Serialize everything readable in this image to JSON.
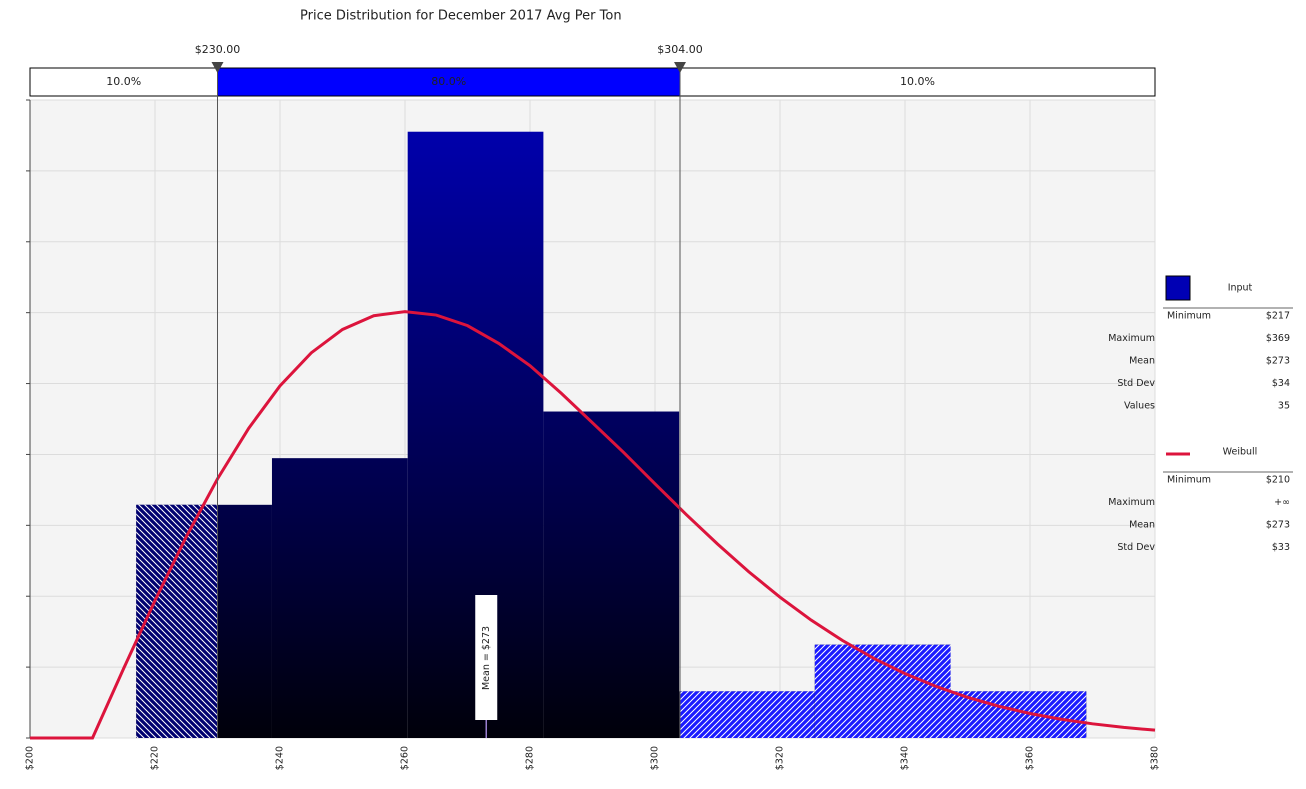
{
  "chart_data": {
    "type": "histogram",
    "title": "Price Distribution for December 2017 Avg Per Ton",
    "xlim": [
      200,
      380
    ],
    "ylim": [
      0,
      0.018
    ],
    "xticks": [
      {
        "value": 200,
        "label": "$200"
      },
      {
        "value": 220,
        "label": "$220"
      },
      {
        "value": 240,
        "label": "$240"
      },
      {
        "value": 260,
        "label": "$260"
      },
      {
        "value": 280,
        "label": "$280"
      },
      {
        "value": 300,
        "label": "$300"
      },
      {
        "value": 320,
        "label": "$320"
      },
      {
        "value": 340,
        "label": "$340"
      },
      {
        "value": 360,
        "label": "$360"
      },
      {
        "value": 380,
        "label": "$380"
      }
    ],
    "yticks": [
      0,
      0.002,
      0.004,
      0.006,
      0.008,
      0.01,
      0.012,
      0.014,
      0.016,
      0.018
    ],
    "grid": true,
    "delimiters": [
      {
        "value": 230,
        "label": "$230.00"
      },
      {
        "value": 304,
        "label": "$304.00"
      }
    ],
    "band_labels": [
      {
        "value": 10,
        "label": "10.0%"
      },
      {
        "value": 80,
        "label": "80.0%"
      },
      {
        "value": 10,
        "label": "10.0%"
      }
    ],
    "mean": {
      "value": 273,
      "label": "Mean = $273"
    },
    "series": [
      {
        "name": "Input",
        "type": "histogram",
        "color": "#0000b4",
        "bins": [
          217,
          238.714,
          260.429,
          282.143,
          303.857,
          325.571,
          347.286,
          369
        ],
        "values": [
          0.006579,
          0.007895,
          0.017105,
          0.009211,
          0.001316,
          0.002632,
          0.001316
        ]
      },
      {
        "name": "Weibull",
        "type": "line",
        "color": "#dc143c",
        "x": [
          200,
          205,
          210,
          215,
          220,
          225,
          230,
          235,
          240,
          245,
          250,
          255,
          260,
          265,
          270,
          275,
          280,
          285,
          290,
          295,
          300,
          305,
          310,
          315,
          320,
          325,
          330,
          335,
          340,
          345,
          350,
          355,
          360,
          365,
          370,
          375,
          380
        ],
        "values": [
          0,
          0,
          0,
          0.001968,
          0.003879,
          0.005676,
          0.007311,
          0.008741,
          0.009935,
          0.010867,
          0.011526,
          0.011913,
          0.01203,
          0.011933,
          0.011634,
          0.011132,
          0.010506,
          0.009726,
          0.008892,
          0.008053,
          0.007172,
          0.006305,
          0.005473,
          0.004691,
          0.003973,
          0.003325,
          0.00275,
          0.002248,
          0.001817,
          0.001452,
          0.001147,
          0.000896,
          0.000692,
          0.000529,
          0.0004,
          0.000299,
          0.000221
        ]
      }
    ],
    "stats": [
      {
        "rows": [
          [
            "Minimum",
            "$217"
          ],
          [
            "Maximum",
            "$369"
          ],
          [
            "Mean",
            "$273"
          ],
          [
            "Std Dev",
            "$34"
          ],
          [
            "Values",
            "35"
          ]
        ]
      },
      {
        "rows": [
          [
            "Minimum",
            "$210"
          ],
          [
            "Maximum",
            "+∞"
          ],
          [
            "Mean",
            "$273"
          ],
          [
            "Std Dev",
            "$33"
          ]
        ]
      }
    ]
  }
}
